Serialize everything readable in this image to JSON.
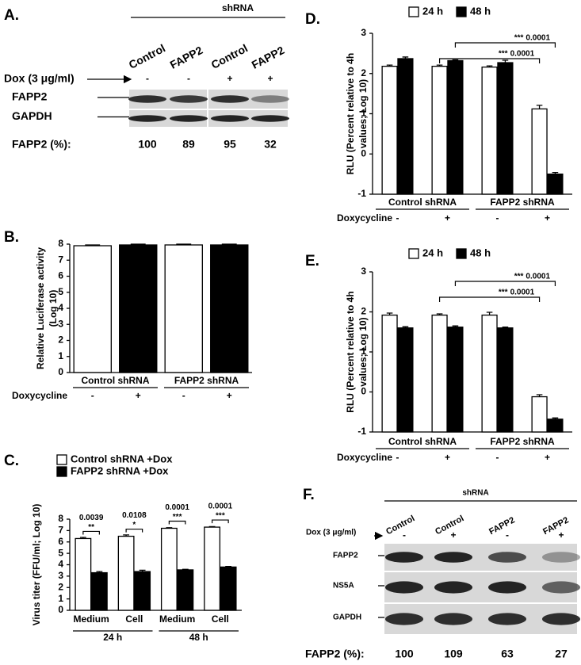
{
  "chart_data": [
    {
      "type": "bar",
      "label": "B.",
      "ylabel": [
        "Relative Luciferase activity",
        "(Log 10)"
      ],
      "categories": [
        "-",
        "+",
        "-",
        "+"
      ],
      "groups": [
        "Control shRNA",
        "FAPP2 shRNA"
      ],
      "xlabel": "Doxycycline",
      "values": [
        7.9,
        7.95,
        7.95,
        7.95
      ],
      "errors": [
        0.05,
        0.05,
        0.05,
        0.05
      ],
      "colors": [
        "#ffffff",
        "#000000",
        "#ffffff",
        "#000000"
      ],
      "ylim": [
        0,
        8
      ],
      "yticks": [
        0,
        1,
        2,
        3,
        4,
        5,
        6,
        7,
        8
      ]
    },
    {
      "type": "bar",
      "label": "C.",
      "ylabel": [
        "Virus titer (FFU/ml; Log 10)"
      ],
      "categories": [
        "Medium",
        "Cell",
        "Medium",
        "Cell"
      ],
      "groups": [
        "24 h",
        "48 h"
      ],
      "series": [
        {
          "name": "Control shRNA +Dox",
          "color": "#ffffff",
          "values": [
            6.3,
            6.5,
            7.2,
            7.3
          ],
          "errors": [
            0.1,
            0.12,
            0.05,
            0.05
          ]
        },
        {
          "name": "FAPP2 shRNA +Dox",
          "color": "#000000",
          "values": [
            3.3,
            3.4,
            3.55,
            3.8
          ],
          "errors": [
            0.1,
            0.12,
            0.05,
            0.05
          ]
        }
      ],
      "annotations": [
        {
          "stars": "**",
          "p": "0.0039"
        },
        {
          "stars": "*",
          "p": "0.0108"
        },
        {
          "stars": "***",
          "p": "0.0001"
        },
        {
          "stars": "***",
          "p": "0.0001"
        }
      ],
      "legend": "top-left",
      "ylim": [
        0,
        8
      ],
      "yticks": [
        0,
        1,
        2,
        3,
        4,
        5,
        6,
        7,
        8
      ]
    },
    {
      "type": "bar",
      "label": "D.",
      "ylabel": [
        "RLU (Percent relative to 4h",
        "values; Log 10)"
      ],
      "categories": [
        "-",
        "+",
        "-",
        "+"
      ],
      "groups": [
        "Control shRNA",
        "FAPP2 shRNA"
      ],
      "xlabel": "Doxycycline",
      "series": [
        {
          "name": "24 h",
          "color": "#ffffff",
          "values": [
            2.18,
            2.18,
            2.16,
            1.12
          ],
          "errors": [
            0.03,
            0.03,
            0.03,
            0.09
          ]
        },
        {
          "name": "48 h",
          "color": "#000000",
          "values": [
            2.37,
            2.32,
            2.27,
            -0.5
          ],
          "errors": [
            0.04,
            0.02,
            0.06,
            0.04
          ]
        }
      ],
      "annotations": [
        {
          "stars": "***",
          "p": "0.0001"
        },
        {
          "stars": "***",
          "p": "0.0001"
        }
      ],
      "legend": "top",
      "ylim": [
        -1,
        3
      ],
      "yticks": [
        -1,
        0,
        1,
        2,
        3
      ]
    },
    {
      "type": "bar",
      "label": "E.",
      "ylabel": [
        "RLU (Percent relative to 4h",
        "values; Log 10)"
      ],
      "categories": [
        "-",
        "+",
        "-",
        "+"
      ],
      "groups": [
        "Control shRNA",
        "FAPP2 shRNA"
      ],
      "xlabel": "Doxycycline",
      "series": [
        {
          "name": "24 h",
          "color": "#ffffff",
          "values": [
            1.92,
            1.92,
            1.92,
            -0.12
          ],
          "errors": [
            0.05,
            0.03,
            0.07,
            0.05
          ]
        },
        {
          "name": "48 h",
          "color": "#000000",
          "values": [
            1.6,
            1.62,
            1.6,
            -0.68
          ],
          "errors": [
            0.03,
            0.03,
            0.02,
            0.03
          ]
        }
      ],
      "annotations": [
        {
          "stars": "***",
          "p": "0.0001"
        },
        {
          "stars": "***",
          "p": "0.0001"
        }
      ],
      "legend": "top",
      "ylim": [
        -1,
        3
      ],
      "yticks": [
        -1,
        0,
        1,
        2,
        3
      ]
    }
  ],
  "blots": [
    {
      "label": "A.",
      "header": "shRNA",
      "lanes": [
        "Control",
        "FAPP2",
        "Control",
        "FAPP2"
      ],
      "treatment": "Dox (3 μg/ml)",
      "signs": [
        "-",
        "-",
        "+",
        "+"
      ],
      "rows": [
        "FAPP2",
        "GAPDH"
      ],
      "quant_label": "FAPP2 (%):",
      "quant": [
        100,
        89,
        95,
        32
      ]
    },
    {
      "label": "F.",
      "header": "shRNA",
      "lanes": [
        "Control",
        "Control",
        "FAPP2",
        "FAPP2"
      ],
      "treatment": "Dox (3 μg/ml)",
      "signs": [
        "-",
        "+",
        "-",
        "+"
      ],
      "rows": [
        "FAPP2",
        "NS5A",
        "GAPDH"
      ],
      "quant_label": "FAPP2 (%):",
      "quant": [
        100,
        109,
        63,
        27
      ]
    }
  ]
}
